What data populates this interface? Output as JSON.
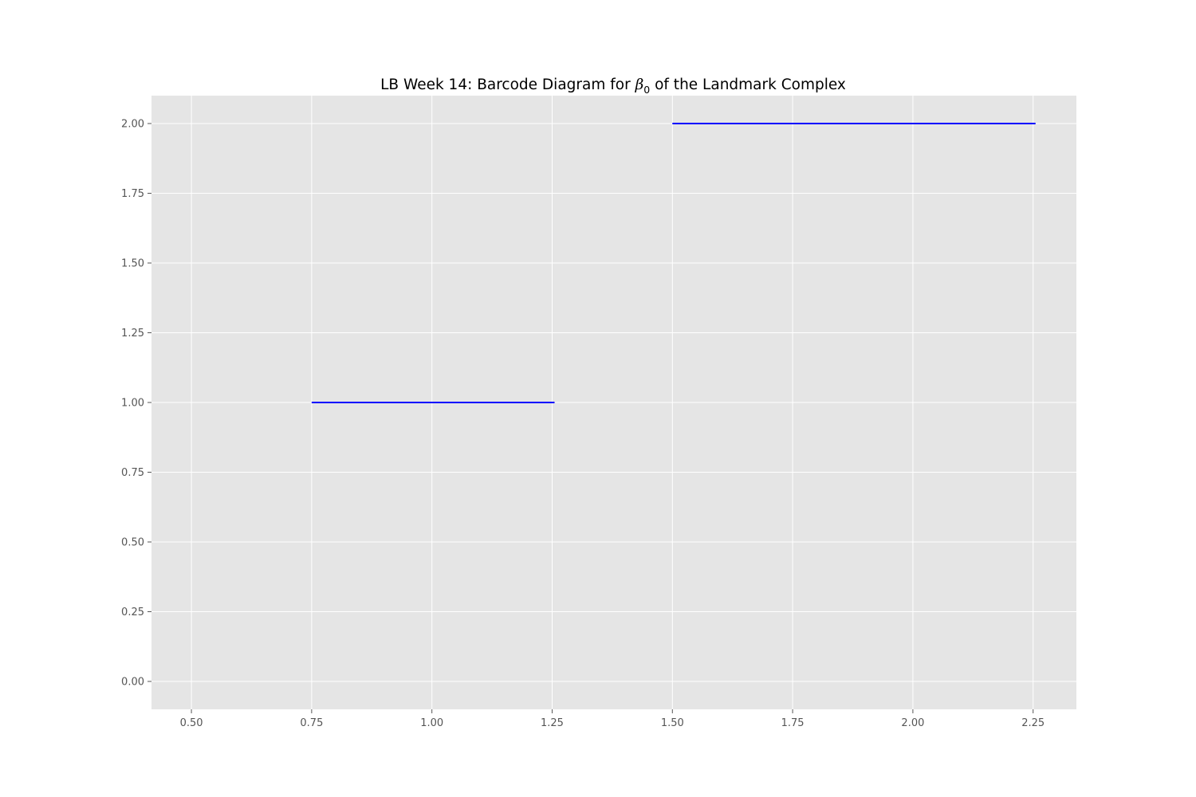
{
  "chart_data": {
    "type": "barcode",
    "title": {
      "prefix": "LB Week 14: Barcode Diagram for ",
      "symbol": "β",
      "subscript": "0",
      "suffix": " of the Landmark Complex"
    },
    "xlabel": "",
    "ylabel": "",
    "xlim": [
      0.417,
      2.34
    ],
    "ylim": [
      -0.1,
      2.1
    ],
    "x_ticks": [
      0.5,
      0.75,
      1.0,
      1.25,
      1.5,
      1.75,
      2.0,
      2.25
    ],
    "x_tick_labels": [
      "0.50",
      "0.75",
      "1.00",
      "1.25",
      "1.50",
      "1.75",
      "2.00",
      "2.25"
    ],
    "y_ticks": [
      0.0,
      0.25,
      0.5,
      0.75,
      1.0,
      1.25,
      1.5,
      1.75,
      2.0
    ],
    "y_tick_labels": [
      "0.00",
      "0.25",
      "0.50",
      "0.75",
      "1.00",
      "1.25",
      "1.50",
      "1.75",
      "2.00"
    ],
    "bars": [
      {
        "y": 1,
        "start": 0.75,
        "end": 1.255
      },
      {
        "y": 2,
        "start": 1.5,
        "end": 2.255
      }
    ],
    "grid": true,
    "colors": {
      "plot_background": "#e5e5e5",
      "grid": "#ffffff",
      "bar": "#0000ff",
      "tick": "#555555"
    }
  }
}
